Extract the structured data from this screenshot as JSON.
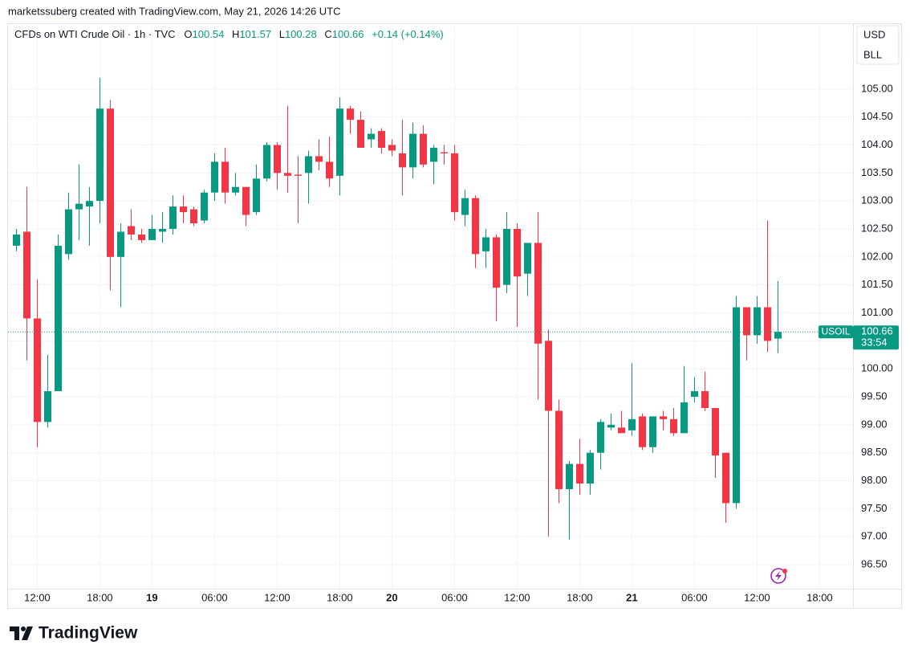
{
  "watermark": "marketssuberg created with TradingView.com, May 21, 2026 14:26 UTC",
  "header": {
    "symbol": "CFDs on WTI Crude Oil · 1h · TVC",
    "o_key": "O",
    "o": "100.54",
    "h_key": "H",
    "h": "101.57",
    "l_key": "L",
    "l": "100.28",
    "c_key": "C",
    "c": "100.66",
    "change": "+0.14 (+0.14%)"
  },
  "currency": "USD",
  "unit": "BLL",
  "logo": "TradingView",
  "chart_data": {
    "type": "candlestick",
    "up_color": "#089981",
    "down_color": "#f23645",
    "grid": true,
    "series": {
      "open": [
        102.2,
        102.45,
        100.9,
        99.05,
        99.6,
        102.05,
        102.85,
        102.9,
        103.0,
        104.65,
        102.0,
        102.55,
        102.4,
        102.3,
        102.45,
        102.5,
        102.9,
        102.85,
        102.65,
        103.15,
        103.7,
        103.15,
        103.25,
        102.8,
        103.4,
        104.0,
        103.5,
        103.47,
        103.5,
        103.8,
        103.7,
        103.45,
        104.65,
        104.45,
        104.1,
        104.25,
        104.0,
        103.85,
        103.6,
        104.2,
        103.7,
        103.87,
        103.85,
        102.75,
        103.05,
        102.1,
        102.35,
        101.5,
        102.5,
        101.7,
        102.25,
        100.5,
        99.25,
        97.85,
        98.3,
        97.95,
        98.5,
        98.95,
        98.95,
        98.9,
        99.15,
        98.6,
        99.15,
        99.1,
        98.85,
        99.5,
        99.6,
        99.3,
        98.5,
        97.6,
        101.1,
        100.6,
        101.1,
        100.54
      ],
      "high": [
        102.5,
        103.25,
        101.6,
        100.25,
        102.4,
        103.15,
        103.65,
        103.25,
        105.2,
        104.8,
        102.6,
        102.85,
        102.5,
        102.75,
        102.8,
        103.1,
        103.1,
        102.9,
        103.2,
        103.85,
        103.95,
        103.5,
        103.25,
        103.65,
        104.05,
        104.05,
        104.7,
        103.8,
        103.9,
        104.1,
        104.15,
        104.85,
        104.7,
        104.6,
        104.3,
        104.3,
        104.1,
        104.45,
        104.4,
        104.35,
        104.0,
        104.0,
        104.0,
        103.2,
        103.1,
        102.5,
        102.4,
        102.8,
        102.6,
        102.25,
        102.8,
        100.7,
        99.45,
        98.35,
        98.75,
        98.55,
        99.1,
        99.2,
        99.25,
        100.1,
        99.2,
        99.15,
        99.25,
        99.3,
        100.05,
        99.85,
        99.95,
        99.3,
        98.5,
        101.3,
        101.1,
        101.3,
        102.65,
        101.57
      ],
      "low": [
        102.1,
        100.15,
        98.6,
        98.95,
        99.6,
        101.95,
        102.3,
        102.2,
        102.6,
        101.4,
        101.1,
        102.3,
        102.25,
        102.3,
        102.25,
        102.4,
        102.6,
        102.55,
        102.6,
        103.0,
        102.95,
        103.1,
        102.55,
        102.75,
        103.35,
        103.2,
        103.15,
        102.6,
        102.95,
        103.55,
        103.25,
        103.1,
        104.2,
        103.95,
        103.95,
        103.85,
        103.8,
        103.1,
        103.4,
        103.6,
        103.3,
        103.65,
        102.65,
        102.55,
        101.8,
        101.8,
        100.85,
        101.35,
        100.75,
        101.3,
        99.45,
        97.0,
        97.6,
        96.95,
        97.75,
        97.75,
        98.2,
        98.9,
        98.85,
        98.8,
        98.55,
        98.5,
        98.9,
        98.8,
        98.85,
        99.4,
        99.25,
        98.05,
        97.25,
        97.5,
        100.15,
        100.45,
        100.3,
        100.28
      ],
      "close": [
        102.4,
        100.9,
        99.05,
        99.6,
        102.2,
        102.85,
        102.95,
        103.0,
        104.65,
        102.0,
        102.45,
        102.4,
        102.3,
        102.5,
        102.5,
        102.9,
        102.8,
        102.6,
        103.15,
        103.7,
        103.15,
        103.25,
        102.75,
        103.4,
        104.0,
        103.5,
        103.45,
        103.45,
        103.8,
        103.7,
        103.4,
        104.65,
        104.45,
        103.95,
        104.2,
        103.95,
        103.9,
        103.6,
        104.2,
        103.65,
        103.95,
        103.85,
        102.8,
        103.05,
        102.05,
        102.35,
        101.45,
        102.5,
        101.65,
        102.25,
        100.45,
        99.25,
        97.85,
        98.3,
        97.95,
        98.5,
        99.05,
        99.0,
        98.85,
        99.1,
        98.6,
        99.15,
        99.1,
        98.85,
        99.4,
        99.6,
        99.3,
        98.45,
        97.6,
        101.1,
        100.6,
        101.1,
        100.5,
        100.66
      ]
    },
    "xlim": [
      -0.8,
      80.2
    ],
    "xticks": [
      {
        "value": 2,
        "label": "12:00"
      },
      {
        "value": 8,
        "label": "18:00"
      },
      {
        "value": 13,
        "label": "19"
      },
      {
        "value": 19,
        "label": "06:00"
      },
      {
        "value": 25,
        "label": "12:00"
      },
      {
        "value": 31,
        "label": "18:00"
      },
      {
        "value": 36,
        "label": "20"
      },
      {
        "value": 42,
        "label": "06:00"
      },
      {
        "value": 48,
        "label": "12:00"
      },
      {
        "value": 54,
        "label": "18:00"
      },
      {
        "value": 59,
        "label": "21"
      },
      {
        "value": 65,
        "label": "06:00"
      },
      {
        "value": 71,
        "label": "12:00"
      },
      {
        "value": 77,
        "label": "18:00"
      }
    ],
    "ylim": [
      96.07,
      106.16
    ],
    "yticks": [
      {
        "value": 96.5,
        "label": "96.50"
      },
      {
        "value": 97,
        "label": "97.00"
      },
      {
        "value": 97.5,
        "label": "97.50"
      },
      {
        "value": 98,
        "label": "98.00"
      },
      {
        "value": 98.5,
        "label": "98.50"
      },
      {
        "value": 99,
        "label": "99.00"
      },
      {
        "value": 99.5,
        "label": "99.50"
      },
      {
        "value": 100,
        "label": "100.00"
      },
      {
        "value": 100.5,
        "label": "100.50"
      },
      {
        "value": 101,
        "label": "101.00"
      },
      {
        "value": 101.5,
        "label": "101.50"
      },
      {
        "value": 102,
        "label": "102.00"
      },
      {
        "value": 102.5,
        "label": "102.50"
      },
      {
        "value": 103,
        "label": "103.00"
      },
      {
        "value": 103.5,
        "label": "103.50"
      },
      {
        "value": 104,
        "label": "104.00"
      },
      {
        "value": 104.5,
        "label": "104.50"
      },
      {
        "value": 105,
        "label": "105.00"
      }
    ],
    "price_tag": {
      "symbol": "USOIL",
      "price": "100.66",
      "countdown": "33:54"
    }
  }
}
